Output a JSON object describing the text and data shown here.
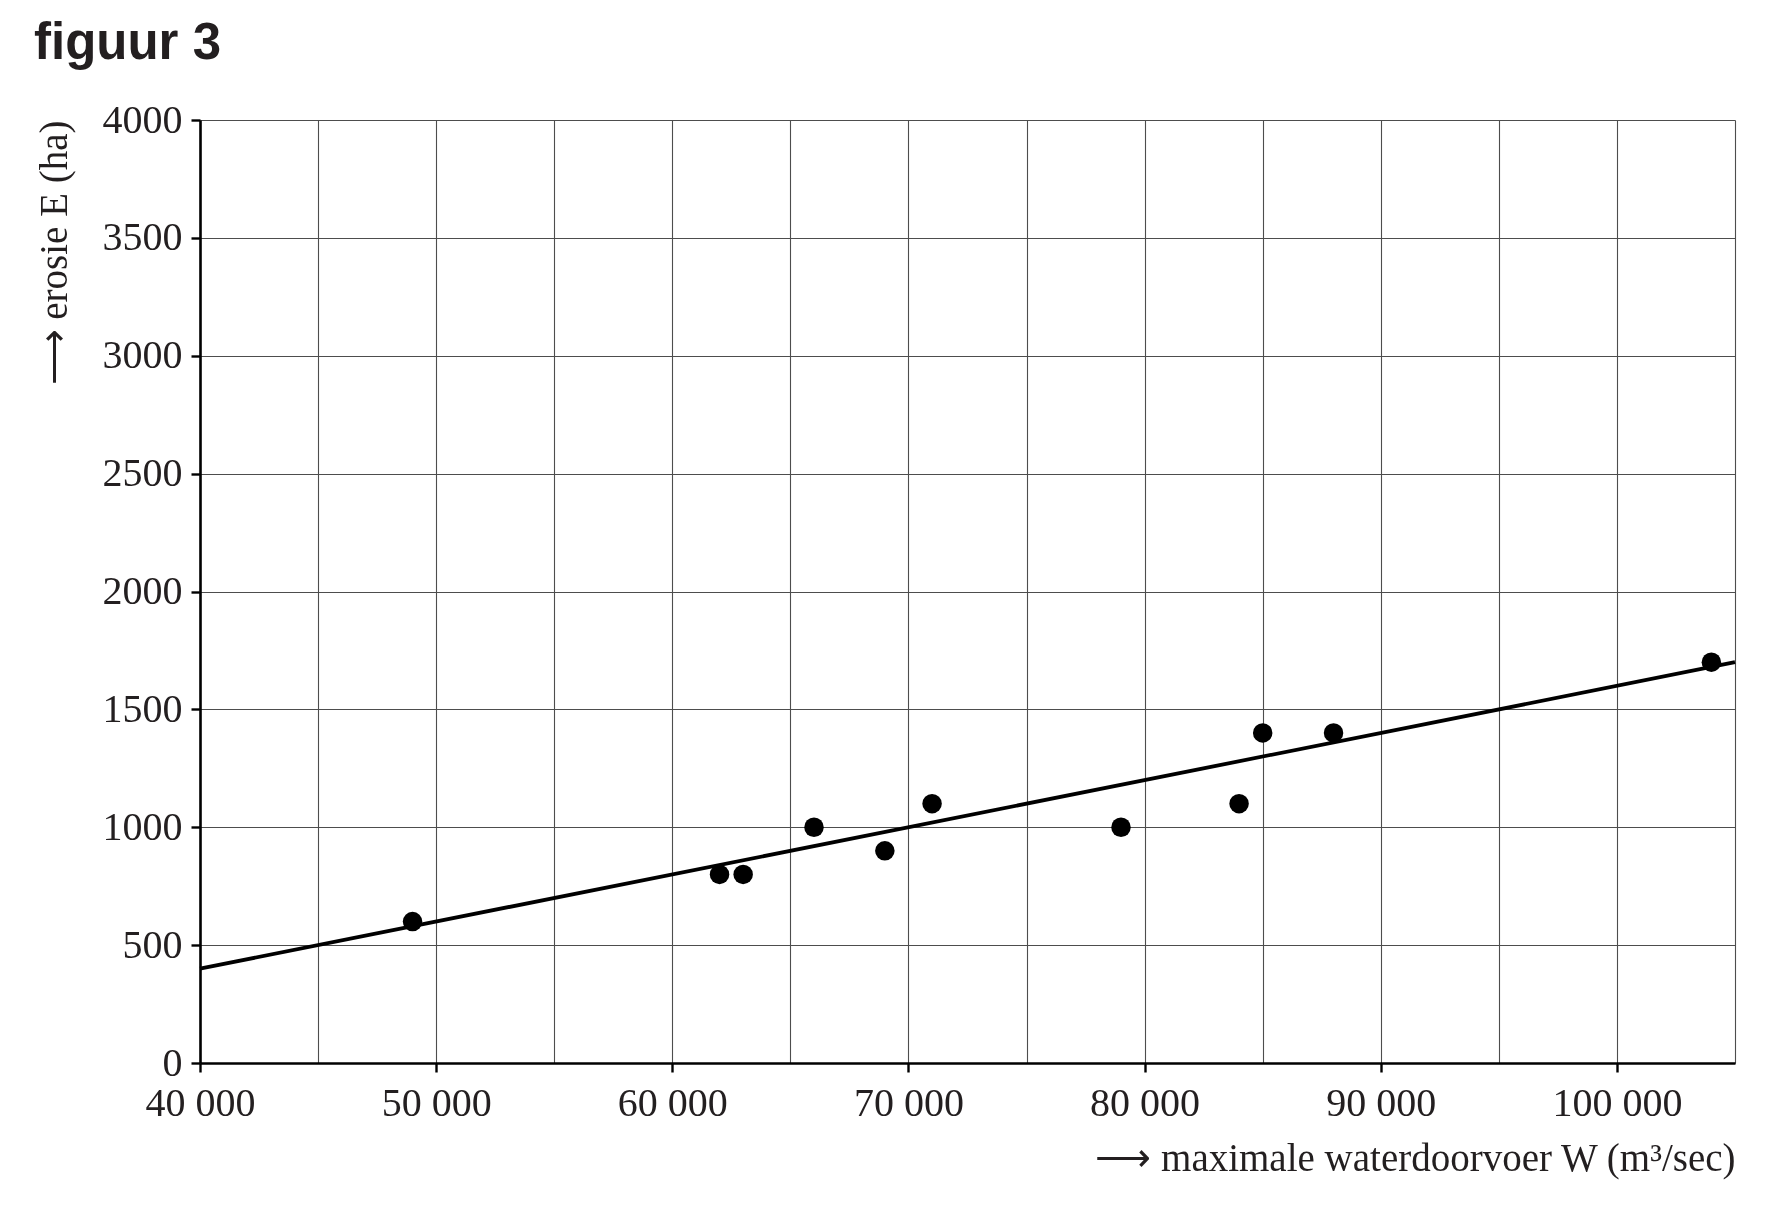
{
  "chart_data": {
    "type": "scatter",
    "title": "figuur 3",
    "xlabel": "⟶ maximale waterdoorvoer W (m³/sec)",
    "ylabel": "⟶ erosie E (ha)",
    "series": [
      {
        "color": "#000000",
        "marker": "circle",
        "x": [
          49000,
          62000,
          63000,
          66000,
          69000,
          71000,
          79000,
          84000,
          85000,
          88000,
          104000
        ],
        "values": [
          600,
          800,
          800,
          1000,
          900,
          1100,
          1000,
          1100,
          1400,
          1400,
          1700
        ]
      },
      {
        "type": "line",
        "color": "#000000",
        "x": [
          40000,
          105000
        ],
        "values": [
          400,
          1700
        ]
      }
    ],
    "xlim": [
      40000,
      105000
    ],
    "ylim": [
      0,
      4000
    ],
    "xticks": [
      {
        "value": 40000,
        "label": "40 000"
      },
      {
        "value": 45000,
        "label": null
      },
      {
        "value": 50000,
        "label": "50 000"
      },
      {
        "value": 55000,
        "label": null
      },
      {
        "value": 60000,
        "label": "60 000"
      },
      {
        "value": 65000,
        "label": null
      },
      {
        "value": 70000,
        "label": "70 000"
      },
      {
        "value": 75000,
        "label": null
      },
      {
        "value": 80000,
        "label": "80 000"
      },
      {
        "value": 85000,
        "label": null
      },
      {
        "value": 90000,
        "label": "90 000"
      },
      {
        "value": 95000,
        "label": null
      },
      {
        "value": 100000,
        "label": "100 000"
      },
      {
        "value": 105000,
        "label": null
      }
    ],
    "yticks": [
      0,
      500,
      1000,
      1500,
      2000,
      2500,
      3000,
      3500,
      4000
    ],
    "grid": true
  }
}
